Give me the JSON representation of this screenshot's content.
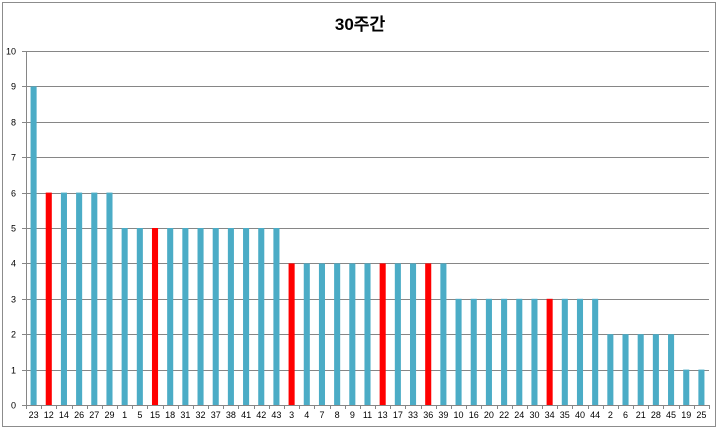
{
  "chart_data": {
    "type": "bar",
    "title": "30주간",
    "xlabel": "",
    "ylabel": "",
    "ylim": [
      0,
      10
    ],
    "yticks": [
      0,
      1,
      2,
      3,
      4,
      5,
      6,
      7,
      8,
      9,
      10
    ],
    "grid": true,
    "legend": "none",
    "categories": [
      "23",
      "12",
      "14",
      "26",
      "27",
      "29",
      "1",
      "5",
      "15",
      "18",
      "31",
      "32",
      "37",
      "38",
      "41",
      "42",
      "43",
      "3",
      "4",
      "7",
      "8",
      "9",
      "11",
      "13",
      "17",
      "33",
      "36",
      "39",
      "10",
      "16",
      "20",
      "22",
      "24",
      "30",
      "34",
      "35",
      "40",
      "44",
      "2",
      "6",
      "21",
      "28",
      "45",
      "19",
      "25"
    ],
    "values": [
      9,
      6,
      6,
      6,
      6,
      6,
      5,
      5,
      5,
      5,
      5,
      5,
      5,
      5,
      5,
      5,
      5,
      4,
      4,
      4,
      4,
      4,
      4,
      4,
      4,
      4,
      4,
      4,
      3,
      3,
      3,
      3,
      3,
      3,
      3,
      3,
      3,
      3,
      2,
      2,
      2,
      2,
      2,
      1,
      1
    ],
    "highlighted": [
      "12",
      "15",
      "3",
      "13",
      "36",
      "34"
    ],
    "colors": {
      "bar": "#4bacc6",
      "highlight": "#ff0000",
      "grid": "#868686",
      "axis": "#868686"
    }
  }
}
